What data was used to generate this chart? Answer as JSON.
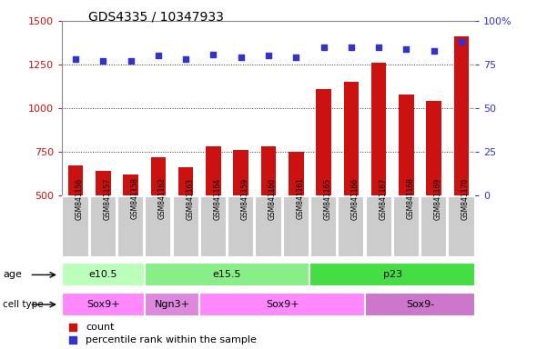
{
  "title": "GDS4335 / 10347933",
  "samples": [
    "GSM841156",
    "GSM841157",
    "GSM841158",
    "GSM841162",
    "GSM841163",
    "GSM841164",
    "GSM841159",
    "GSM841160",
    "GSM841161",
    "GSM841165",
    "GSM841166",
    "GSM841167",
    "GSM841168",
    "GSM841169",
    "GSM841170"
  ],
  "counts": [
    670,
    640,
    620,
    720,
    660,
    780,
    760,
    780,
    750,
    1110,
    1150,
    1260,
    1080,
    1040,
    1410
  ],
  "percentiles": [
    78,
    77,
    77,
    80,
    78,
    81,
    79,
    80,
    79,
    85,
    85,
    85,
    84,
    83,
    88
  ],
  "ylim_left": [
    500,
    1500
  ],
  "ylim_right": [
    0,
    100
  ],
  "yticks_left": [
    500,
    750,
    1000,
    1250,
    1500
  ],
  "yticks_right": [
    0,
    25,
    50,
    75,
    100
  ],
  "bar_color": "#cc1111",
  "dot_color": "#3333cc",
  "grid_color": "#333333",
  "age_groups": [
    {
      "label": "e10.5",
      "start": 0,
      "end": 3,
      "color": "#bbffbb"
    },
    {
      "label": "e15.5",
      "start": 3,
      "end": 9,
      "color": "#88ee88"
    },
    {
      "label": "p23",
      "start": 9,
      "end": 15,
      "color": "#44dd44"
    }
  ],
  "cell_groups": [
    {
      "label": "Sox9+",
      "start": 0,
      "end": 3,
      "color": "#ff88ff"
    },
    {
      "label": "Ngn3+",
      "start": 3,
      "end": 5,
      "color": "#dd88dd"
    },
    {
      "label": "Sox9+",
      "start": 5,
      "end": 11,
      "color": "#ff88ff"
    },
    {
      "label": "Sox9-",
      "start": 11,
      "end": 15,
      "color": "#cc77cc"
    }
  ],
  "legend_count_label": "count",
  "legend_pct_label": "percentile rank within the sample",
  "left_label_color": "#cc1111",
  "right_label_color": "#3333cc",
  "bar_width": 0.55,
  "sample_bg_color": "#cccccc",
  "plot_bg_color": "#ffffff",
  "age_label": "age",
  "cell_label": "cell type"
}
